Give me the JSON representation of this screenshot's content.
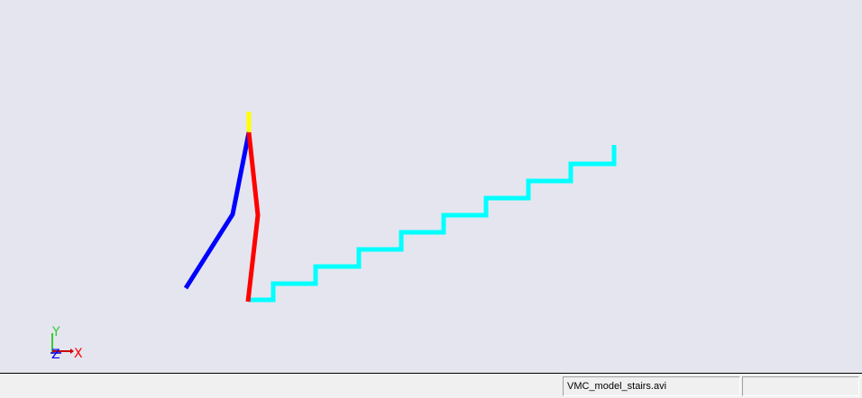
{
  "scene": {
    "colors": {
      "background": "#e5e5ef",
      "head": "#ffff00",
      "left_limb": "#0000ff",
      "right_limb": "#ff0000",
      "stairs": "#00ffff"
    },
    "axes": {
      "x_label": "X",
      "y_label": "Y",
      "z_label": "Z",
      "x_color": "#ff0000",
      "y_color": "#33cc33",
      "z_color": "#0000ff"
    }
  },
  "status_bar": {
    "main_text": "",
    "file_name": "VMC_model_stairs.avi",
    "extra_text": ""
  }
}
